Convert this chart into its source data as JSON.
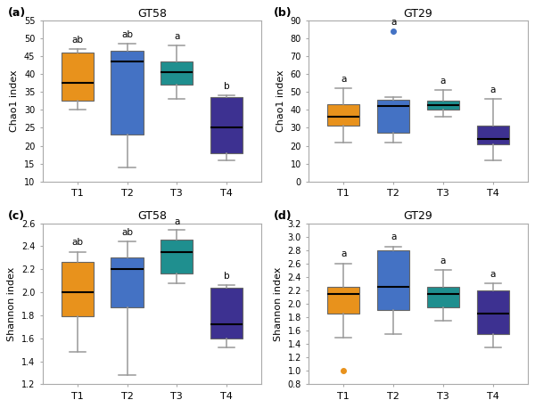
{
  "panels": [
    {
      "label": "(a)",
      "title": "GT58",
      "ylabel": "Chao1 index",
      "ylim": [
        10,
        55
      ],
      "yticks": [
        10,
        15,
        20,
        25,
        30,
        35,
        40,
        45,
        50,
        55
      ],
      "ytick_labels": [
        "10",
        "15",
        "20",
        "25",
        "30",
        "35",
        "40",
        "45",
        "50",
        "55"
      ],
      "groups": [
        "T1",
        "T2",
        "T3",
        "T4"
      ],
      "colors": [
        "#E8921C",
        "#4472C4",
        "#1F8F8F",
        "#3D3191"
      ],
      "sig_labels": [
        "ab",
        "ab",
        "a",
        "b"
      ],
      "boxes": [
        {
          "q1": 32.5,
          "median": 37.5,
          "q3": 46.0,
          "whislo": 30.0,
          "whishi": 47.0
        },
        {
          "q1": 23.0,
          "median": 43.5,
          "q3": 46.5,
          "whislo": 14.0,
          "whishi": 48.5
        },
        {
          "q1": 37.0,
          "median": 40.5,
          "q3": 43.5,
          "whislo": 33.0,
          "whishi": 48.0
        },
        {
          "q1": 18.0,
          "median": 25.0,
          "q3": 33.5,
          "whislo": 16.0,
          "whishi": 34.0
        }
      ],
      "fliers": [
        [],
        [],
        [],
        []
      ]
    },
    {
      "label": "(b)",
      "title": "GT29",
      "ylabel": "Chao1 index",
      "ylim": [
        0,
        90
      ],
      "yticks": [
        0,
        10,
        20,
        30,
        40,
        50,
        60,
        70,
        80,
        90
      ],
      "ytick_labels": [
        "0",
        "10",
        "20",
        "30",
        "40",
        "50",
        "60",
        "70",
        "80",
        "90"
      ],
      "groups": [
        "T1",
        "T2",
        "T3",
        "T4"
      ],
      "colors": [
        "#E8921C",
        "#4472C4",
        "#1F8F8F",
        "#3D3191"
      ],
      "sig_labels": [
        "a",
        "a",
        "a",
        "a"
      ],
      "boxes": [
        {
          "q1": 31.0,
          "median": 36.0,
          "q3": 43.0,
          "whislo": 22.0,
          "whishi": 52.0
        },
        {
          "q1": 27.0,
          "median": 42.0,
          "q3": 45.5,
          "whislo": 22.0,
          "whishi": 47.0
        },
        {
          "q1": 40.0,
          "median": 42.5,
          "q3": 45.0,
          "whislo": 36.0,
          "whishi": 51.0
        },
        {
          "q1": 21.0,
          "median": 24.0,
          "q3": 31.0,
          "whislo": 12.0,
          "whishi": 46.0
        }
      ],
      "fliers": [
        [],
        [
          84.0
        ],
        [],
        []
      ],
      "flier_colors": [
        "#4472C4",
        "#4472C4",
        "#1F8F8F",
        "#3D3191"
      ]
    },
    {
      "label": "(c)",
      "title": "GT58",
      "ylabel": "Shannon index",
      "ylim": [
        1.2,
        2.6
      ],
      "yticks": [
        1.2,
        1.4,
        1.6,
        1.8,
        2.0,
        2.2,
        2.4,
        2.6
      ],
      "ytick_labels": [
        "1.2",
        "1.4",
        "1.6",
        "1.8",
        "2.0",
        "2.2",
        "2.4",
        "2.6"
      ],
      "groups": [
        "T1",
        "T2",
        "T3",
        "T4"
      ],
      "colors": [
        "#E8921C",
        "#4472C4",
        "#1F8F8F",
        "#3D3191"
      ],
      "sig_labels": [
        "ab",
        "ab",
        "a",
        "b"
      ],
      "boxes": [
        {
          "q1": 1.79,
          "median": 2.0,
          "q3": 2.26,
          "whislo": 1.48,
          "whishi": 2.35
        },
        {
          "q1": 1.87,
          "median": 2.2,
          "q3": 2.3,
          "whislo": 1.28,
          "whishi": 2.44
        },
        {
          "q1": 2.16,
          "median": 2.35,
          "q3": 2.46,
          "whislo": 2.08,
          "whishi": 2.54
        },
        {
          "q1": 1.6,
          "median": 1.72,
          "q3": 2.04,
          "whislo": 1.52,
          "whishi": 2.06
        }
      ],
      "fliers": [
        [],
        [],
        [],
        []
      ]
    },
    {
      "label": "(d)",
      "title": "GT29",
      "ylabel": "Shannon index",
      "ylim": [
        0.8,
        3.2
      ],
      "yticks": [
        0.8,
        1.0,
        1.2,
        1.4,
        1.6,
        1.8,
        2.0,
        2.2,
        2.4,
        2.6,
        2.8,
        3.0,
        3.2
      ],
      "ytick_labels": [
        "0.8",
        "1.0",
        "1.2",
        "1.4",
        "1.6",
        "1.8",
        "2.0",
        "2.2",
        "2.4",
        "2.6",
        "2.8",
        "3.0",
        "3.2"
      ],
      "groups": [
        "T1",
        "T2",
        "T3",
        "T4"
      ],
      "colors": [
        "#E8921C",
        "#4472C4",
        "#1F8F8F",
        "#3D3191"
      ],
      "sig_labels": [
        "a",
        "a",
        "a",
        "a"
      ],
      "boxes": [
        {
          "q1": 1.85,
          "median": 2.15,
          "q3": 2.25,
          "whislo": 1.5,
          "whishi": 2.6
        },
        {
          "q1": 1.9,
          "median": 2.25,
          "q3": 2.8,
          "whislo": 1.55,
          "whishi": 2.85
        },
        {
          "q1": 1.95,
          "median": 2.15,
          "q3": 2.25,
          "whislo": 1.75,
          "whishi": 2.5
        },
        {
          "q1": 1.55,
          "median": 1.85,
          "q3": 2.2,
          "whislo": 1.35,
          "whishi": 2.3
        }
      ],
      "fliers": [
        [
          1.0
        ],
        [],
        [],
        []
      ],
      "flier_colors": [
        "#E8921C",
        "#4472C4",
        "#1F8F8F",
        "#3D3191"
      ]
    }
  ]
}
